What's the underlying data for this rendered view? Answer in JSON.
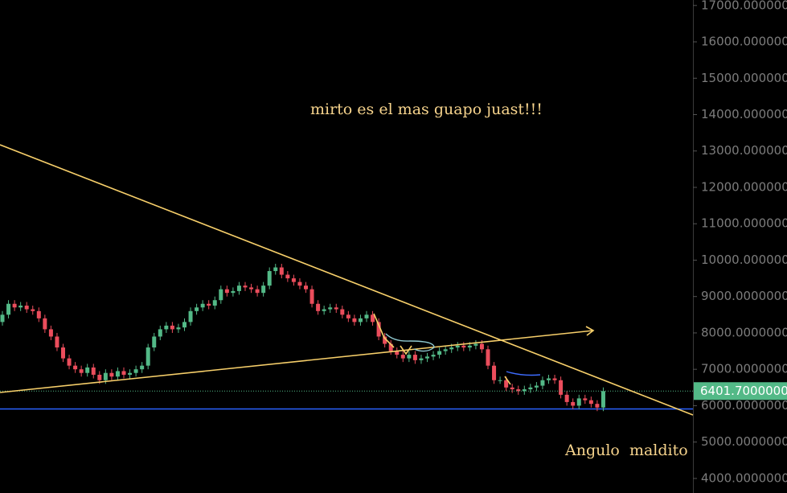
{
  "chart_data": {
    "type": "candlestick",
    "title": "mirto es el mas guapo juast!!!",
    "annotation": "Angulo  maldito",
    "up_color": "#53b987",
    "down_color": "#eb4d5c",
    "open": [
      8300,
      8500,
      8800,
      8700,
      8750,
      8650,
      8600,
      8400,
      8100,
      7900,
      7600,
      7300,
      7100,
      7000,
      6900,
      7050,
      6850,
      6700,
      6900,
      6800,
      6950,
      6850,
      6900,
      7000,
      7100,
      7600,
      7900,
      8100,
      8200,
      8100,
      8150,
      8300,
      8600,
      8700,
      8800,
      8750,
      8900,
      9200,
      9100,
      9150,
      9300,
      9250,
      9200,
      9100,
      9300,
      9700,
      9800,
      9600,
      9500,
      9400,
      9300,
      9200,
      8800,
      8600,
      8650,
      8700,
      8650,
      8500,
      8400,
      8300,
      8400,
      8500,
      8300,
      7900,
      7700,
      7500,
      7400,
      7300,
      7400,
      7250,
      7300,
      7350,
      7400,
      7500,
      7550,
      7600,
      7650,
      7600,
      7650,
      7700,
      7550,
      7100,
      6700,
      6700,
      6500,
      6450,
      6400,
      6450,
      6500,
      6550,
      6700,
      6750,
      6700,
      6300,
      6100,
      6000,
      6200,
      6150,
      6050,
      5950
    ],
    "high": [
      8600,
      8900,
      8900,
      8850,
      8850,
      8750,
      8700,
      8500,
      8200,
      8000,
      7700,
      7400,
      7200,
      7100,
      7150,
      7150,
      6950,
      7000,
      7000,
      7050,
      7050,
      7000,
      7100,
      7200,
      7700,
      8000,
      8200,
      8300,
      8300,
      8250,
      8400,
      8700,
      8800,
      8900,
      8900,
      9000,
      9300,
      9300,
      9250,
      9400,
      9400,
      9350,
      9300,
      9400,
      9800,
      9900,
      9900,
      9700,
      9600,
      9500,
      9400,
      9300,
      8900,
      8750,
      8800,
      8800,
      8750,
      8600,
      8500,
      8500,
      8600,
      8600,
      8400,
      8000,
      7800,
      7600,
      7500,
      7500,
      7500,
      7400,
      7450,
      7500,
      7600,
      7650,
      7700,
      7750,
      7750,
      7750,
      7800,
      7800,
      7650,
      7200,
      6800,
      6800,
      6600,
      6550,
      6550,
      6600,
      6650,
      6800,
      6850,
      6850,
      6800,
      6400,
      6200,
      6300,
      6300,
      6250,
      6150,
      6501.7
    ],
    "low": [
      8200,
      8400,
      8600,
      8600,
      8550,
      8500,
      8300,
      8000,
      7800,
      7500,
      7200,
      7000,
      6900,
      6800,
      6800,
      6750,
      6600,
      6600,
      6700,
      6700,
      6750,
      6750,
      6800,
      6900,
      7000,
      7500,
      7800,
      8000,
      8000,
      8000,
      8050,
      8200,
      8500,
      8600,
      8650,
      8650,
      8800,
      9000,
      9000,
      9050,
      9150,
      9100,
      9000,
      9000,
      9200,
      9600,
      9500,
      9400,
      9300,
      9200,
      9100,
      8700,
      8500,
      8500,
      8550,
      8550,
      8400,
      8300,
      8200,
      8200,
      8300,
      8200,
      7800,
      7600,
      7400,
      7300,
      7200,
      7200,
      7150,
      7150,
      7200,
      7250,
      7300,
      7400,
      7450,
      7500,
      7500,
      7500,
      7550,
      7450,
      7000,
      6600,
      6600,
      6400,
      6350,
      6300,
      6300,
      6350,
      6400,
      6450,
      6600,
      6600,
      6200,
      6000,
      5900,
      5900,
      6050,
      5950,
      5850,
      5850
    ],
    "close": [
      8500,
      8800,
      8700,
      8750,
      8650,
      8600,
      8400,
      8100,
      7900,
      7600,
      7300,
      7100,
      7000,
      6900,
      7050,
      6850,
      6700,
      6900,
      6800,
      6950,
      6850,
      6900,
      7000,
      7100,
      7600,
      7900,
      8100,
      8200,
      8100,
      8150,
      8300,
      8600,
      8700,
      8800,
      8750,
      8900,
      9200,
      9100,
      9150,
      9300,
      9250,
      9200,
      9100,
      9300,
      9700,
      9800,
      9600,
      9500,
      9400,
      9300,
      9200,
      8800,
      8600,
      8650,
      8700,
      8650,
      8500,
      8400,
      8300,
      8400,
      8500,
      8300,
      7900,
      7700,
      7500,
      7400,
      7300,
      7400,
      7250,
      7300,
      7350,
      7400,
      7500,
      7550,
      7600,
      7650,
      7600,
      7650,
      7700,
      7550,
      7100,
      6700,
      6700,
      6500,
      6450,
      6400,
      6450,
      6500,
      6550,
      6700,
      6750,
      6700,
      6300,
      6100,
      6000,
      6200,
      6150,
      6050,
      5950,
      6401.7
    ],
    "last_price_label": "6401.70000000",
    "hline": 5910,
    "hline_color": "#2962ff",
    "ylim": [
      3600,
      17150
    ],
    "yticks": [
      {
        "value": 17000,
        "label": "17000.00000000"
      },
      {
        "value": 16000,
        "label": "16000.00000000"
      },
      {
        "value": 15000,
        "label": "15000.00000000"
      },
      {
        "value": 14000,
        "label": "14000.00000000"
      },
      {
        "value": 13000,
        "label": "13000.00000000"
      },
      {
        "value": 12000,
        "label": "12000.00000000"
      },
      {
        "value": 11000,
        "label": "11000.00000000"
      },
      {
        "value": 10000,
        "label": "10000.00000000"
      },
      {
        "value": 9000,
        "label": "9000.00000000"
      },
      {
        "value": 8000,
        "label": "8000.00000000"
      },
      {
        "value": 7000,
        "label": "7000.00000000"
      },
      {
        "value": 6000,
        "label": "6000.00000000"
      },
      {
        "value": 5000,
        "label": "5000.00000000"
      },
      {
        "value": 4000,
        "label": "4000.00000000"
      }
    ]
  }
}
